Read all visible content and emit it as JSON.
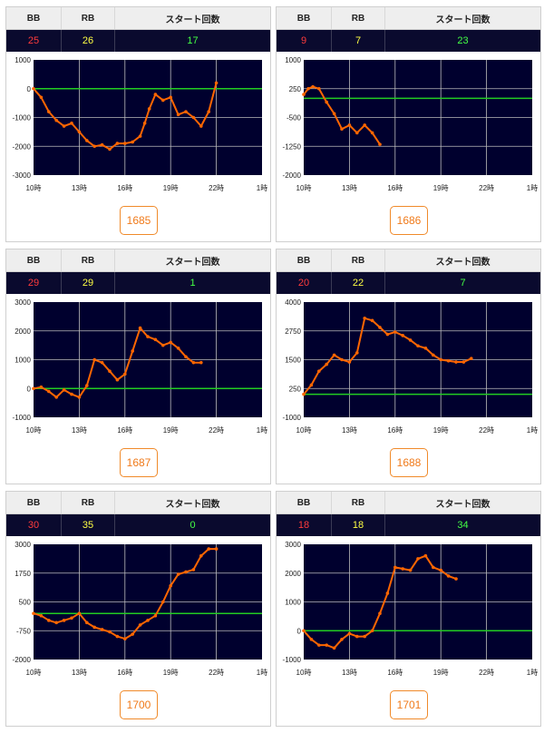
{
  "headers": {
    "bb": "BB",
    "rb": "RB",
    "start": "スタート回数"
  },
  "colors": {
    "plot_bg": "#00002e",
    "line": "#ff6600",
    "zero_line": "#22cc22",
    "grid": "#bbbbbb"
  },
  "machines": [
    {
      "bb": "25",
      "rb": "26",
      "start": "17",
      "number": "1685"
    },
    {
      "bb": "9",
      "rb": "7",
      "start": "23",
      "number": "1686"
    },
    {
      "bb": "29",
      "rb": "29",
      "start": "1",
      "number": "1687"
    },
    {
      "bb": "20",
      "rb": "22",
      "start": "7",
      "number": "1688"
    },
    {
      "bb": "30",
      "rb": "35",
      "start": "0",
      "number": "1700"
    },
    {
      "bb": "18",
      "rb": "18",
      "start": "34",
      "number": "1701"
    }
  ],
  "chart_data": [
    {
      "type": "line",
      "xlim": [
        10,
        25
      ],
      "ylim": [
        -3000,
        1000
      ],
      "ref_y": 0,
      "x_ticks": [
        "10時",
        "13時",
        "16時",
        "19時",
        "22時",
        "1時"
      ],
      "y_ticks": [
        "1000",
        "0",
        "-1000",
        "-2000",
        "-3000"
      ],
      "x": [
        10,
        10.5,
        11,
        11.5,
        12,
        12.5,
        13,
        13.5,
        14,
        14.5,
        15,
        15.5,
        16,
        16.5,
        17,
        17.3,
        17.6,
        18,
        18.5,
        19,
        19.5,
        20,
        20.5,
        21,
        21.5,
        22
      ],
      "y": [
        0,
        -300,
        -800,
        -1100,
        -1300,
        -1200,
        -1500,
        -1800,
        -2000,
        -1950,
        -2100,
        -1900,
        -1900,
        -1850,
        -1650,
        -1200,
        -700,
        -200,
        -400,
        -300,
        -900,
        -800,
        -1000,
        -1300,
        -800,
        200
      ]
    },
    {
      "type": "line",
      "xlim": [
        10,
        25
      ],
      "ylim": [
        -2000,
        1000
      ],
      "ref_y": 0,
      "x_ticks": [
        "10時",
        "13時",
        "16時",
        "19時",
        "22時",
        "1時"
      ],
      "y_ticks": [
        "1000",
        "250",
        "-500",
        "-1250",
        "-2000"
      ],
      "x": [
        10,
        10.3,
        10.6,
        11,
        11.5,
        12,
        12.5,
        13,
        13.5,
        14,
        14.5,
        15
      ],
      "y": [
        100,
        250,
        300,
        250,
        -100,
        -400,
        -800,
        -700,
        -900,
        -700,
        -900,
        -1200
      ]
    },
    {
      "type": "line",
      "xlim": [
        10,
        25
      ],
      "ylim": [
        -1000,
        3000
      ],
      "ref_y": 0,
      "x_ticks": [
        "10時",
        "13時",
        "16時",
        "19時",
        "22時",
        "1時"
      ],
      "y_ticks": [
        "3000",
        "2000",
        "1000",
        "0",
        "-1000"
      ],
      "x": [
        10,
        10.5,
        11,
        11.5,
        12,
        12.5,
        13,
        13.5,
        14,
        14.5,
        15,
        15.5,
        16,
        16.5,
        17,
        17.5,
        18,
        18.5,
        19,
        19.5,
        20,
        20.5,
        21
      ],
      "y": [
        0,
        50,
        -100,
        -300,
        -50,
        -200,
        -300,
        100,
        1000,
        900,
        600,
        300,
        500,
        1300,
        2100,
        1800,
        1700,
        1500,
        1600,
        1400,
        1100,
        900,
        900
      ]
    },
    {
      "type": "line",
      "xlim": [
        10,
        25
      ],
      "ylim": [
        -1000,
        4000
      ],
      "ref_y": 0,
      "x_ticks": [
        "10時",
        "13時",
        "16時",
        "19時",
        "22時",
        "1時"
      ],
      "y_ticks": [
        "4000",
        "2750",
        "1500",
        "250",
        "-1000"
      ],
      "x": [
        10,
        10.5,
        11,
        11.5,
        12,
        12.5,
        13,
        13.5,
        14,
        14.5,
        15,
        15.5,
        16,
        16.5,
        17,
        17.5,
        18,
        18.5,
        19,
        19.5,
        20,
        20.5,
        21
      ],
      "y": [
        0,
        400,
        1000,
        1300,
        1700,
        1500,
        1400,
        1800,
        3300,
        3200,
        2900,
        2600,
        2700,
        2550,
        2350,
        2100,
        2000,
        1700,
        1500,
        1450,
        1400,
        1400,
        1550
      ]
    },
    {
      "type": "line",
      "xlim": [
        10,
        25
      ],
      "ylim": [
        -2000,
        3000
      ],
      "ref_y": 0,
      "x_ticks": [
        "10時",
        "13時",
        "16時",
        "19時",
        "22時",
        "1時"
      ],
      "y_ticks": [
        "3000",
        "1750",
        "500",
        "-750",
        "-2000"
      ],
      "x": [
        10,
        10.5,
        11,
        11.5,
        12,
        12.5,
        13,
        13.5,
        14,
        14.5,
        15,
        15.5,
        16,
        16.5,
        17,
        17.5,
        18,
        18.5,
        19,
        19.5,
        20,
        20.5,
        21,
        21.5,
        22
      ],
      "y": [
        0,
        -100,
        -300,
        -400,
        -300,
        -200,
        0,
        -400,
        -600,
        -700,
        -800,
        -1000,
        -1100,
        -900,
        -500,
        -300,
        -100,
        500,
        1200,
        1700,
        1800,
        1900,
        2500,
        2800,
        2800
      ]
    },
    {
      "type": "line",
      "xlim": [
        10,
        25
      ],
      "ylim": [
        -1000,
        3000
      ],
      "ref_y": 0,
      "x_ticks": [
        "10時",
        "13時",
        "16時",
        "19時",
        "22時",
        "1時"
      ],
      "y_ticks": [
        "3000",
        "2000",
        "1000",
        "0",
        "-1000"
      ],
      "x": [
        10,
        10.5,
        11,
        11.5,
        12,
        12.5,
        13,
        13.5,
        14,
        14.5,
        15,
        15.5,
        16,
        16.5,
        17,
        17.5,
        18,
        18.5,
        19,
        19.5,
        20
      ],
      "y": [
        0,
        -300,
        -500,
        -500,
        -600,
        -300,
        -100,
        -200,
        -200,
        0,
        600,
        1300,
        2200,
        2150,
        2100,
        2500,
        2600,
        2200,
        2100,
        1900,
        1800
      ]
    }
  ]
}
